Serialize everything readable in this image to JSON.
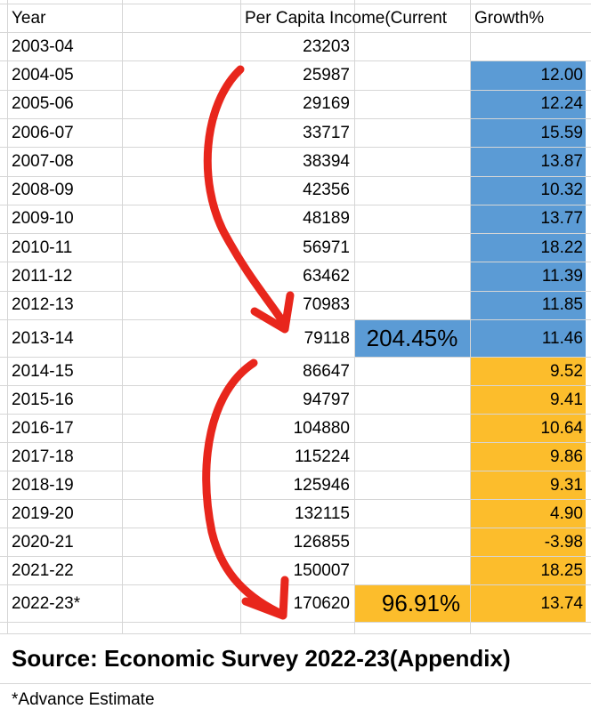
{
  "table": {
    "header": [
      "Year",
      "Per Capita Income(Current",
      "Growth%"
    ],
    "rows": [
      [
        "2003-04",
        "23203",
        null
      ],
      [
        "2004-05",
        "25987",
        "12.00"
      ],
      [
        "2005-06",
        "29169",
        "12.24"
      ],
      [
        "2006-07",
        "33717",
        "15.59"
      ],
      [
        "2007-08",
        "38394",
        "13.87"
      ],
      [
        "2008-09",
        "42356",
        "10.32"
      ],
      [
        "2009-10",
        "48189",
        "13.77"
      ],
      [
        "2010-11",
        "56971",
        "18.22"
      ],
      [
        "2011-12",
        "63462",
        "11.39"
      ],
      [
        "2012-13",
        "70983",
        "11.85"
      ],
      [
        "2013-14",
        "79118",
        "11.46"
      ],
      [
        "2014-15",
        "86647",
        "9.52"
      ],
      [
        "2015-16",
        "94797",
        "9.41"
      ],
      [
        "2016-17",
        "104880",
        "10.64"
      ],
      [
        "2017-18",
        "115224",
        "9.86"
      ],
      [
        "2018-19",
        "125946",
        "9.31"
      ],
      [
        "2019-20",
        "132115",
        "4.90"
      ],
      [
        "2020-21",
        "126855",
        "-3.98"
      ],
      [
        "2021-22",
        "150007",
        "18.25"
      ],
      [
        "2022-23*",
        "170620",
        "13.74"
      ]
    ]
  },
  "annotations": {
    "first_growth": "204.45%",
    "second_growth": "96.91%"
  },
  "source": "Source: Economic Survey 2022-23(Appendix)",
  "footnote": "*Advance Estimate"
}
